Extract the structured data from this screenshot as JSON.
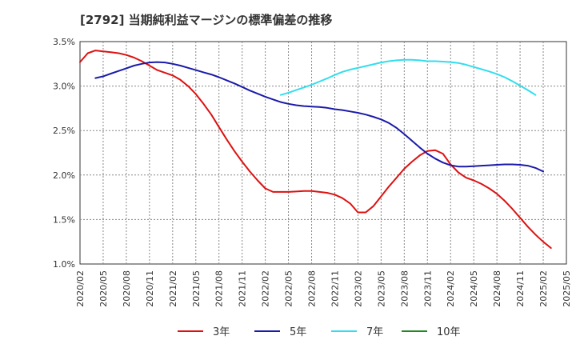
{
  "chart_data": {
    "type": "line",
    "title": "[2792]  当期純利益マージンの標準偏差の推移",
    "x_ticks": [
      "2020/02",
      "2020/05",
      "2020/08",
      "2020/11",
      "2021/02",
      "2021/05",
      "2021/08",
      "2021/11",
      "2022/02",
      "2022/05",
      "2022/08",
      "2022/11",
      "2023/02",
      "2023/05",
      "2023/08",
      "2023/11",
      "2024/02",
      "2024/05",
      "2024/08",
      "2024/11",
      "2025/02",
      "2025/05"
    ],
    "y_ticks": [
      "1.0%",
      "1.5%",
      "2.0%",
      "2.5%",
      "3.0%",
      "3.5%"
    ],
    "ylim": [
      1.0,
      3.5
    ],
    "grid": true,
    "legend_position": "bottom",
    "series": [
      {
        "name": "3年",
        "color": "#dd1111",
        "points": [
          [
            "2020/02",
            3.27
          ],
          [
            "2020/03",
            3.37
          ],
          [
            "2020/04",
            3.4
          ],
          [
            "2020/05",
            3.39
          ],
          [
            "2020/06",
            3.38
          ],
          [
            "2020/07",
            3.37
          ],
          [
            "2020/08",
            3.35
          ],
          [
            "2020/09",
            3.32
          ],
          [
            "2020/10",
            3.28
          ],
          [
            "2020/11",
            3.23
          ],
          [
            "2020/12",
            3.18
          ],
          [
            "2021/01",
            3.15
          ],
          [
            "2021/02",
            3.12
          ],
          [
            "2021/03",
            3.07
          ],
          [
            "2021/04",
            3.0
          ],
          [
            "2021/05",
            2.91
          ],
          [
            "2021/06",
            2.8
          ],
          [
            "2021/07",
            2.68
          ],
          [
            "2021/08",
            2.54
          ],
          [
            "2021/09",
            2.4
          ],
          [
            "2021/10",
            2.27
          ],
          [
            "2021/11",
            2.15
          ],
          [
            "2021/12",
            2.04
          ],
          [
            "2022/01",
            1.94
          ],
          [
            "2022/02",
            1.85
          ],
          [
            "2022/03",
            1.81
          ],
          [
            "2022/04",
            1.81
          ],
          [
            "2022/05",
            1.81
          ],
          [
            "2022/06",
            1.815
          ],
          [
            "2022/07",
            1.82
          ],
          [
            "2022/08",
            1.82
          ],
          [
            "2022/09",
            1.81
          ],
          [
            "2022/10",
            1.8
          ],
          [
            "2022/11",
            1.78
          ],
          [
            "2022/12",
            1.74
          ],
          [
            "2023/01",
            1.68
          ],
          [
            "2023/02",
            1.58
          ],
          [
            "2023/03",
            1.58
          ],
          [
            "2023/04",
            1.65
          ],
          [
            "2023/05",
            1.76
          ],
          [
            "2023/06",
            1.87
          ],
          [
            "2023/07",
            1.97
          ],
          [
            "2023/08",
            2.07
          ],
          [
            "2023/09",
            2.15
          ],
          [
            "2023/10",
            2.22
          ],
          [
            "2023/11",
            2.27
          ],
          [
            "2023/12",
            2.28
          ],
          [
            "2024/01",
            2.24
          ],
          [
            "2024/02",
            2.12
          ],
          [
            "2024/03",
            2.03
          ],
          [
            "2024/04",
            1.97
          ],
          [
            "2024/05",
            1.94
          ],
          [
            "2024/06",
            1.9
          ],
          [
            "2024/07",
            1.85
          ],
          [
            "2024/08",
            1.79
          ],
          [
            "2024/09",
            1.71
          ],
          [
            "2024/10",
            1.62
          ],
          [
            "2024/11",
            1.52
          ],
          [
            "2024/12",
            1.42
          ],
          [
            "2025/01",
            1.33
          ],
          [
            "2025/02",
            1.25
          ],
          [
            "2025/03",
            1.18
          ]
        ]
      },
      {
        "name": "5年",
        "color": "#1a1aaa",
        "points": [
          [
            "2020/04",
            3.09
          ],
          [
            "2020/05",
            3.11
          ],
          [
            "2020/06",
            3.14
          ],
          [
            "2020/07",
            3.17
          ],
          [
            "2020/08",
            3.2
          ],
          [
            "2020/09",
            3.23
          ],
          [
            "2020/10",
            3.25
          ],
          [
            "2020/11",
            3.265
          ],
          [
            "2020/12",
            3.27
          ],
          [
            "2021/01",
            3.265
          ],
          [
            "2021/02",
            3.25
          ],
          [
            "2021/03",
            3.23
          ],
          [
            "2021/04",
            3.205
          ],
          [
            "2021/05",
            3.18
          ],
          [
            "2021/06",
            3.155
          ],
          [
            "2021/07",
            3.13
          ],
          [
            "2021/08",
            3.1
          ],
          [
            "2021/09",
            3.065
          ],
          [
            "2021/10",
            3.03
          ],
          [
            "2021/11",
            2.99
          ],
          [
            "2021/12",
            2.95
          ],
          [
            "2022/01",
            2.915
          ],
          [
            "2022/02",
            2.88
          ],
          [
            "2022/03",
            2.85
          ],
          [
            "2022/04",
            2.82
          ],
          [
            "2022/05",
            2.8
          ],
          [
            "2022/06",
            2.785
          ],
          [
            "2022/07",
            2.775
          ],
          [
            "2022/08",
            2.77
          ],
          [
            "2022/09",
            2.765
          ],
          [
            "2022/10",
            2.755
          ],
          [
            "2022/11",
            2.74
          ],
          [
            "2022/12",
            2.73
          ],
          [
            "2023/01",
            2.715
          ],
          [
            "2023/02",
            2.7
          ],
          [
            "2023/03",
            2.68
          ],
          [
            "2023/04",
            2.655
          ],
          [
            "2023/05",
            2.625
          ],
          [
            "2023/06",
            2.585
          ],
          [
            "2023/07",
            2.53
          ],
          [
            "2023/08",
            2.46
          ],
          [
            "2023/09",
            2.385
          ],
          [
            "2023/10",
            2.31
          ],
          [
            "2023/11",
            2.24
          ],
          [
            "2023/12",
            2.185
          ],
          [
            "2024/01",
            2.14
          ],
          [
            "2024/02",
            2.11
          ],
          [
            "2024/03",
            2.095
          ],
          [
            "2024/04",
            2.095
          ],
          [
            "2024/05",
            2.1
          ],
          [
            "2024/06",
            2.105
          ],
          [
            "2024/07",
            2.11
          ],
          [
            "2024/08",
            2.115
          ],
          [
            "2024/09",
            2.12
          ],
          [
            "2024/10",
            2.12
          ],
          [
            "2024/11",
            2.115
          ],
          [
            "2024/12",
            2.105
          ],
          [
            "2025/01",
            2.08
          ],
          [
            "2025/02",
            2.04
          ]
        ]
      },
      {
        "name": "7年",
        "color": "#33ddee",
        "points": [
          [
            "2022/04",
            2.9
          ],
          [
            "2022/05",
            2.925
          ],
          [
            "2022/06",
            2.955
          ],
          [
            "2022/07",
            2.985
          ],
          [
            "2022/08",
            3.015
          ],
          [
            "2022/09",
            3.05
          ],
          [
            "2022/10",
            3.085
          ],
          [
            "2022/11",
            3.125
          ],
          [
            "2022/12",
            3.16
          ],
          [
            "2023/01",
            3.185
          ],
          [
            "2023/02",
            3.205
          ],
          [
            "2023/03",
            3.225
          ],
          [
            "2023/04",
            3.245
          ],
          [
            "2023/05",
            3.265
          ],
          [
            "2023/06",
            3.28
          ],
          [
            "2023/07",
            3.29
          ],
          [
            "2023/08",
            3.295
          ],
          [
            "2023/09",
            3.295
          ],
          [
            "2023/10",
            3.29
          ],
          [
            "2023/11",
            3.28
          ],
          [
            "2023/12",
            3.28
          ],
          [
            "2024/01",
            3.275
          ],
          [
            "2024/02",
            3.27
          ],
          [
            "2024/03",
            3.26
          ],
          [
            "2024/04",
            3.24
          ],
          [
            "2024/05",
            3.215
          ],
          [
            "2024/06",
            3.19
          ],
          [
            "2024/07",
            3.165
          ],
          [
            "2024/08",
            3.135
          ],
          [
            "2024/09",
            3.1
          ],
          [
            "2024/10",
            3.055
          ],
          [
            "2024/11",
            3.005
          ],
          [
            "2024/12",
            2.955
          ],
          [
            "2025/01",
            2.9
          ]
        ]
      },
      {
        "name": "10年",
        "color": "#228822",
        "points": []
      }
    ]
  }
}
